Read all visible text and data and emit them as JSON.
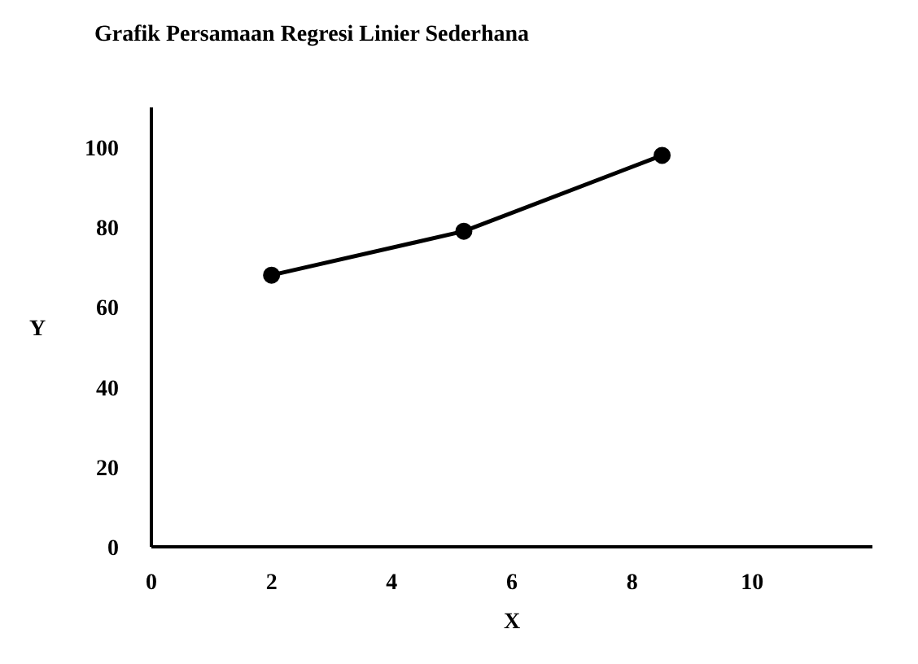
{
  "chart_data": {
    "type": "line",
    "title": "Grafik Persamaan Regresi Linier Sederhana",
    "xlabel": "X",
    "ylabel": "Y",
    "x": [
      2,
      5.2,
      8.5
    ],
    "series": [
      {
        "color": "#000000",
        "values": [
          68,
          79,
          98
        ]
      }
    ],
    "xlim": [
      0,
      12
    ],
    "xticks": [
      0,
      2,
      4,
      6,
      8,
      10
    ],
    "ylim": [
      0,
      110
    ],
    "yticks": [
      0,
      20,
      40,
      60,
      80,
      100
    ],
    "grid": false,
    "legend": false,
    "marker": "circle",
    "line_style": "solid"
  }
}
